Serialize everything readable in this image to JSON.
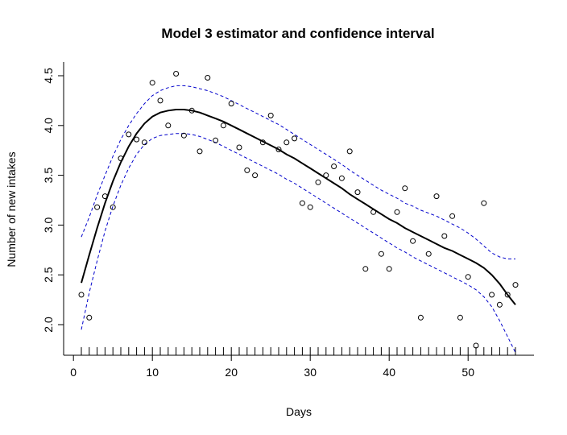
{
  "chart_data": {
    "type": "line",
    "title": "Model 3 estimator and confidence interval",
    "xlabel": "Days",
    "ylabel": "Number of new intakes",
    "xlim": [
      1,
      56
    ],
    "ylim": [
      1.75,
      4.55
    ],
    "x_ticks": [
      "0",
      "10",
      "20",
      "30",
      "40",
      "50"
    ],
    "y_ticks": [
      "2.0",
      "2.5",
      "3.0",
      "3.5",
      "4.0",
      "4.5"
    ],
    "rug_x": [
      1,
      2,
      3,
      4,
      5,
      6,
      7,
      8,
      9,
      10,
      11,
      12,
      13,
      14,
      15,
      16,
      17,
      18,
      19,
      20,
      21,
      22,
      23,
      24,
      25,
      26,
      27,
      28,
      29,
      30,
      31,
      32,
      33,
      34,
      35,
      36,
      37,
      38,
      39,
      40,
      41,
      42,
      43,
      44,
      45,
      46,
      47,
      48,
      49,
      50,
      51,
      52,
      53,
      54,
      55,
      56
    ],
    "points": {
      "x": [
        1,
        2,
        3,
        4,
        5,
        6,
        7,
        8,
        9,
        10,
        11,
        12,
        13,
        14,
        15,
        16,
        17,
        18,
        19,
        20,
        21,
        22,
        23,
        24,
        25,
        26,
        27,
        28,
        29,
        30,
        31,
        32,
        33,
        34,
        35,
        36,
        37,
        38,
        39,
        40,
        41,
        42,
        43,
        44,
        45,
        46,
        47,
        48,
        49,
        50,
        51,
        52,
        53,
        54,
        55,
        56
      ],
      "y": [
        2.3,
        2.07,
        3.18,
        3.29,
        3.18,
        3.67,
        3.91,
        3.86,
        3.83,
        4.43,
        4.25,
        4.0,
        4.52,
        3.9,
        4.15,
        3.74,
        4.48,
        3.85,
        4.0,
        4.22,
        3.78,
        3.55,
        3.5,
        3.83,
        4.1,
        3.76,
        3.83,
        3.87,
        3.22,
        3.18,
        3.43,
        3.5,
        3.59,
        3.47,
        3.74,
        3.33,
        2.56,
        3.13,
        2.71,
        2.56,
        3.13,
        3.37,
        2.84,
        2.07,
        2.71,
        3.29,
        2.89,
        3.09,
        2.07,
        2.48,
        1.79,
        3.22,
        2.3,
        2.2,
        2.3,
        2.4
      ]
    },
    "series": [
      {
        "x": [
          1,
          2,
          3,
          4,
          5,
          6,
          7,
          8,
          9,
          10,
          11,
          12,
          13,
          14,
          15,
          16,
          17,
          18,
          19,
          20,
          21,
          22,
          23,
          24,
          25,
          26,
          27,
          28,
          29,
          30,
          31,
          32,
          33,
          34,
          35,
          36,
          37,
          38,
          39,
          40,
          41,
          42,
          43,
          44,
          45,
          46,
          47,
          48,
          49,
          50,
          51,
          52,
          53,
          54,
          55,
          56
        ],
        "y": [
          2.42,
          2.7,
          2.97,
          3.22,
          3.44,
          3.63,
          3.79,
          3.92,
          4.02,
          4.09,
          4.13,
          4.15,
          4.16,
          4.16,
          4.15,
          4.13,
          4.1,
          4.07,
          4.04,
          4.0,
          3.96,
          3.92,
          3.88,
          3.84,
          3.8,
          3.76,
          3.71,
          3.67,
          3.62,
          3.57,
          3.52,
          3.47,
          3.42,
          3.37,
          3.31,
          3.26,
          3.21,
          3.16,
          3.11,
          3.06,
          3.02,
          2.97,
          2.93,
          2.89,
          2.85,
          2.81,
          2.77,
          2.74,
          2.7,
          2.66,
          2.62,
          2.57,
          2.5,
          2.41,
          2.3,
          2.2
        ],
        "color": "#000000",
        "style": "solid"
      },
      {
        "x": [
          1,
          2,
          3,
          4,
          5,
          6,
          7,
          8,
          9,
          10,
          11,
          12,
          13,
          14,
          15,
          16,
          17,
          18,
          19,
          20,
          21,
          22,
          23,
          24,
          25,
          26,
          27,
          28,
          29,
          30,
          31,
          32,
          33,
          34,
          35,
          36,
          37,
          38,
          39,
          40,
          41,
          42,
          43,
          44,
          45,
          46,
          47,
          48,
          49,
          50,
          51,
          52,
          53,
          54,
          55,
          56
        ],
        "y": [
          2.88,
          3.08,
          3.3,
          3.5,
          3.69,
          3.86,
          4.0,
          4.12,
          4.22,
          4.3,
          4.35,
          4.38,
          4.4,
          4.4,
          4.39,
          4.37,
          4.35,
          4.32,
          4.29,
          4.25,
          4.21,
          4.17,
          4.13,
          4.09,
          4.05,
          4.01,
          3.96,
          3.91,
          3.86,
          3.81,
          3.76,
          3.71,
          3.66,
          3.61,
          3.55,
          3.5,
          3.45,
          3.4,
          3.35,
          3.31,
          3.27,
          3.22,
          3.19,
          3.15,
          3.12,
          3.09,
          3.05,
          3.01,
          2.97,
          2.92,
          2.86,
          2.79,
          2.72,
          2.68,
          2.66,
          2.66
        ],
        "color": "#0000cc",
        "style": "dashed"
      },
      {
        "x": [
          1,
          2,
          3,
          4,
          5,
          6,
          7,
          8,
          9,
          10,
          11,
          12,
          13,
          14,
          15,
          16,
          17,
          18,
          19,
          20,
          21,
          22,
          23,
          24,
          25,
          26,
          27,
          28,
          29,
          30,
          31,
          32,
          33,
          34,
          35,
          36,
          37,
          38,
          39,
          40,
          41,
          42,
          43,
          44,
          45,
          46,
          47,
          48,
          49,
          50,
          51,
          52,
          53,
          54,
          55,
          56
        ],
        "y": [
          1.95,
          2.32,
          2.64,
          2.94,
          3.19,
          3.4,
          3.57,
          3.71,
          3.81,
          3.87,
          3.9,
          3.91,
          3.92,
          3.92,
          3.91,
          3.89,
          3.86,
          3.83,
          3.79,
          3.75,
          3.71,
          3.67,
          3.63,
          3.59,
          3.55,
          3.51,
          3.46,
          3.42,
          3.37,
          3.32,
          3.27,
          3.22,
          3.17,
          3.12,
          3.07,
          3.02,
          2.97,
          2.92,
          2.87,
          2.82,
          2.77,
          2.73,
          2.68,
          2.64,
          2.6,
          2.56,
          2.52,
          2.48,
          2.44,
          2.4,
          2.35,
          2.28,
          2.18,
          2.04,
          1.88,
          1.72
        ],
        "color": "#0000cc",
        "style": "dashed"
      }
    ],
    "grid": false
  }
}
